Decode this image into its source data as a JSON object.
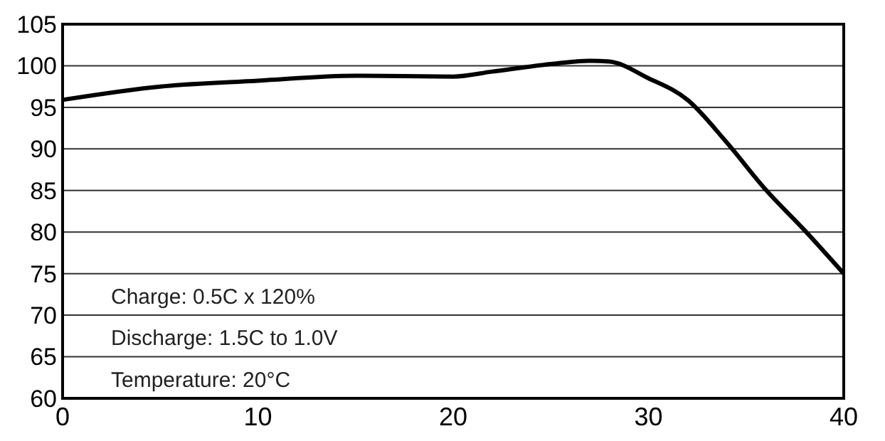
{
  "chart_data": {
    "type": "line",
    "x": [
      0,
      5,
      10,
      15,
      20,
      22,
      25,
      27,
      28,
      30,
      32,
      34,
      36,
      38,
      40
    ],
    "series": [
      {
        "color": "#000000",
        "values": [
          95.9,
          97.5,
          98.2,
          98.8,
          98.7,
          99.3,
          100.2,
          100.6,
          100.5,
          98.5,
          95.9,
          90.8,
          85.1,
          80.2,
          75
        ]
      }
    ],
    "xlim": [
      0,
      40
    ],
    "xticks": [
      0,
      10,
      20,
      30,
      40
    ],
    "ylim": [
      60,
      105
    ],
    "yticks": [
      60,
      65,
      70,
      75,
      80,
      85,
      90,
      95,
      100,
      105
    ],
    "grid": "y",
    "marker": "none",
    "line_style": "solid",
    "annotations": [
      "Charge: 0.5C x 120%",
      "Discharge: 1.5C to 1.0V",
      "Temperature: 20°C"
    ]
  }
}
